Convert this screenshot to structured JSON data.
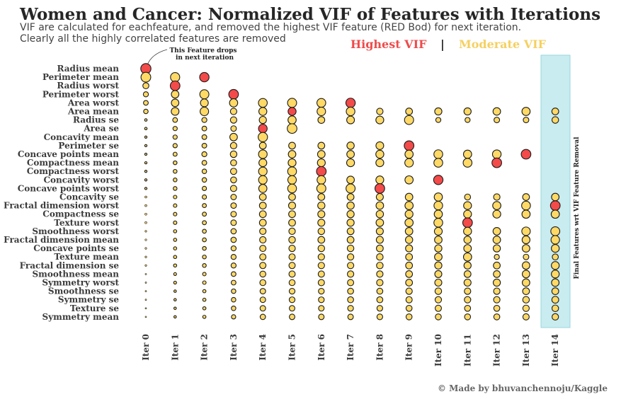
{
  "title": "Women and Cancer: Normalized VIF of Features with Iterations",
  "subtitle_lines": [
    "VIF are calculated for eachfeature, and removed the highest VIF feature (RED Bod) for next iteration.",
    "Clearly all the highly correlated features are removed"
  ],
  "legend": {
    "highest_label": "Highest VIF",
    "separator": "|",
    "moderate_label": "Moderate VIF"
  },
  "annotation": {
    "lines": [
      "This Feature drops",
      "in next iteration"
    ]
  },
  "highlight_label": "Final Features wrt VIF Feature Removal",
  "credit": "© Made by bhuvanchennoju/Kaggle",
  "colors": {
    "highest": "#f34a4a",
    "moderate": "#ffd966",
    "highest_text": "#ee4b4b",
    "moderate_text": "#f5d060",
    "highlight_band": "#c8ecf0",
    "text": "#3b3b3b"
  },
  "chart_data": {
    "type": "scatter",
    "x": [
      "Iter 0",
      "Iter 1",
      "Iter 2",
      "Iter 3",
      "Iter 4",
      "Iter 5",
      "Iter 6",
      "Iter 7",
      "Iter 8",
      "Iter 9",
      "Iter 10",
      "Iter 11",
      "Iter 12",
      "Iter 13",
      "Iter 14"
    ],
    "features": [
      "Radius mean",
      "Perimeter mean",
      "Radius worst",
      "Perimeter worst",
      "Area worst",
      "Area mean",
      "Radius se",
      "Area se",
      "Concavity mean",
      "Perimeter se",
      "Concave points mean",
      "Compactness mean",
      "Compactness worst",
      "Concavity worst",
      "Concave points worst",
      "Concavity se",
      "Fractal dimension worst",
      "Compactness se",
      "Texture worst",
      "Smoothness worst",
      "Fractal dimension mean",
      "Concave points se",
      "Texture mean",
      "Fractal dimension se",
      "Smoothness mean",
      "Symmetry worst",
      "Smoothness se",
      "Symmetry se",
      "Texture se",
      "Symmetry mean"
    ],
    "removed_at_iteration": [
      0,
      2,
      1,
      3,
      7,
      5,
      null,
      4,
      null,
      9,
      13,
      12,
      6,
      10,
      8,
      null,
      14,
      null,
      11,
      null,
      null,
      null,
      null,
      null,
      null,
      null,
      null,
      null,
      null,
      null
    ],
    "normalized_vif": [
      [
        1.0,
        null,
        null,
        null,
        null,
        null,
        null,
        null,
        null,
        null,
        null,
        null,
        null,
        null,
        null
      ],
      [
        0.92,
        0.82,
        0.85,
        null,
        null,
        null,
        null,
        null,
        null,
        null,
        null,
        null,
        null,
        null,
        null
      ],
      [
        0.35,
        0.9,
        null,
        null,
        null,
        null,
        null,
        null,
        null,
        null,
        null,
        null,
        null,
        null,
        null
      ],
      [
        0.25,
        0.55,
        0.8,
        0.9,
        null,
        null,
        null,
        null,
        null,
        null,
        null,
        null,
        null,
        null,
        null
      ],
      [
        0.22,
        0.55,
        0.6,
        0.65,
        0.75,
        0.8,
        0.75,
        0.85,
        null,
        null,
        null,
        null,
        null,
        null,
        null
      ],
      [
        0.2,
        0.58,
        0.7,
        0.4,
        0.62,
        0.62,
        0.7,
        0.72,
        0.4,
        0.45,
        0.5,
        0.5,
        0.55,
        0.65,
        0.45
      ],
      [
        0.06,
        0.22,
        0.25,
        0.4,
        0.5,
        0.65,
        0.45,
        0.58,
        0.6,
        0.8,
        0.25,
        0.25,
        0.3,
        0.3,
        0.42
      ],
      [
        0.06,
        0.18,
        0.22,
        0.3,
        0.72,
        0.9,
        null,
        null,
        null,
        null,
        null,
        null,
        null,
        null,
        null
      ],
      [
        0.05,
        0.18,
        0.22,
        0.55,
        0.85,
        null,
        null,
        null,
        null,
        null,
        null,
        null,
        null,
        null,
        null
      ],
      [
        0.05,
        0.18,
        0.22,
        0.4,
        0.45,
        0.45,
        0.45,
        0.52,
        0.58,
        0.9,
        null,
        null,
        null,
        null,
        null
      ],
      [
        0.05,
        0.16,
        0.25,
        0.42,
        0.72,
        0.55,
        0.55,
        0.55,
        0.62,
        0.65,
        0.75,
        0.65,
        0.72,
        0.9,
        null
      ],
      [
        0.05,
        0.14,
        0.22,
        0.35,
        0.6,
        0.6,
        0.6,
        0.6,
        0.6,
        0.7,
        0.75,
        0.75,
        0.9,
        null,
        null
      ],
      [
        0.05,
        0.14,
        0.2,
        0.38,
        0.7,
        0.75,
        0.9,
        null,
        null,
        null,
        null,
        null,
        null,
        null,
        null
      ],
      [
        0.05,
        0.14,
        0.2,
        0.35,
        0.7,
        0.7,
        0.7,
        0.55,
        0.6,
        0.65,
        0.85,
        null,
        null,
        null,
        null
      ],
      [
        0.05,
        0.14,
        0.18,
        0.38,
        0.65,
        0.75,
        0.8,
        0.8,
        0.9,
        null,
        null,
        null,
        null,
        null,
        null
      ],
      [
        0.04,
        0.12,
        0.18,
        0.3,
        0.45,
        0.45,
        0.45,
        0.45,
        0.48,
        0.55,
        0.65,
        0.35,
        0.4,
        0.45,
        0.55
      ],
      [
        0.04,
        0.12,
        0.16,
        0.3,
        0.45,
        0.48,
        0.5,
        0.52,
        0.55,
        0.65,
        0.72,
        0.6,
        0.65,
        0.75,
        0.9
      ],
      [
        0.04,
        0.12,
        0.16,
        0.3,
        0.45,
        0.45,
        0.48,
        0.5,
        0.52,
        0.6,
        0.65,
        0.6,
        0.6,
        0.65,
        0.65
      ],
      [
        0.04,
        0.12,
        0.16,
        0.3,
        0.45,
        0.45,
        0.48,
        0.5,
        0.55,
        0.65,
        0.75,
        0.9,
        null,
        null,
        null
      ],
      [
        0.03,
        0.1,
        0.15,
        0.28,
        0.4,
        0.4,
        0.42,
        0.45,
        0.48,
        0.55,
        0.6,
        0.62,
        0.55,
        0.7,
        0.78
      ],
      [
        0.03,
        0.1,
        0.15,
        0.28,
        0.4,
        0.42,
        0.45,
        0.45,
        0.48,
        0.52,
        0.55,
        0.52,
        0.55,
        0.6,
        0.7
      ],
      [
        0.03,
        0.1,
        0.14,
        0.25,
        0.38,
        0.4,
        0.42,
        0.42,
        0.45,
        0.48,
        0.5,
        0.55,
        0.5,
        0.55,
        0.6
      ],
      [
        0.03,
        0.1,
        0.14,
        0.25,
        0.38,
        0.38,
        0.4,
        0.4,
        0.42,
        0.45,
        0.55,
        0.65,
        0.25,
        0.3,
        0.35
      ],
      [
        0.03,
        0.1,
        0.14,
        0.25,
        0.38,
        0.38,
        0.4,
        0.4,
        0.42,
        0.45,
        0.5,
        0.5,
        0.45,
        0.55,
        0.6
      ],
      [
        0.02,
        0.08,
        0.12,
        0.22,
        0.35,
        0.38,
        0.38,
        0.4,
        0.4,
        0.45,
        0.48,
        0.45,
        0.45,
        0.55,
        0.6
      ],
      [
        0.02,
        0.08,
        0.12,
        0.22,
        0.35,
        0.35,
        0.38,
        0.38,
        0.4,
        0.45,
        0.48,
        0.48,
        0.5,
        0.55,
        0.55
      ],
      [
        0.02,
        0.06,
        0.1,
        0.2,
        0.3,
        0.32,
        0.32,
        0.35,
        0.35,
        0.4,
        0.42,
        0.4,
        0.4,
        0.45,
        0.45
      ],
      [
        0.02,
        0.06,
        0.1,
        0.2,
        0.3,
        0.32,
        0.32,
        0.35,
        0.35,
        0.38,
        0.4,
        0.4,
        0.4,
        0.42,
        0.45
      ],
      [
        0.02,
        0.06,
        0.1,
        0.2,
        0.3,
        0.3,
        0.3,
        0.32,
        0.32,
        0.35,
        0.38,
        0.35,
        0.35,
        0.4,
        0.42
      ],
      [
        0.02,
        0.06,
        0.1,
        0.18,
        0.28,
        0.3,
        0.3,
        0.3,
        0.32,
        0.35,
        0.35,
        0.35,
        0.35,
        0.38,
        0.4
      ]
    ]
  }
}
